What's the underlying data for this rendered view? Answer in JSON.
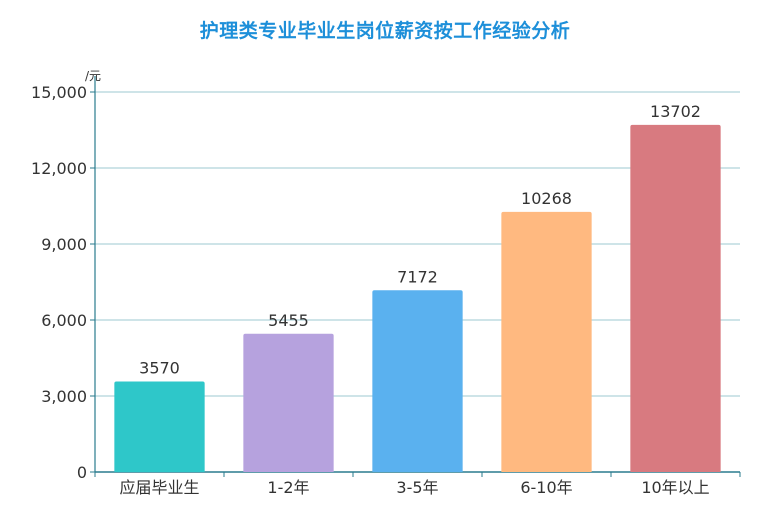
{
  "chart_data": {
    "type": "bar",
    "title": "护理类专业毕业生岗位薪资按工作经验分析",
    "ylabel": "元",
    "xlabel": "",
    "categories": [
      "应届毕业生",
      "1-2年",
      "3-5年",
      "6-10年",
      "10年以上"
    ],
    "values": [
      3570,
      5455,
      7172,
      10268,
      13702
    ],
    "data_labels": [
      "3570",
      "5455",
      "7172",
      "10268",
      "13702"
    ],
    "yticks": [
      0,
      3000,
      6000,
      9000,
      12000,
      15000
    ],
    "ytick_labels": [
      "0",
      "3,000",
      "6,000",
      "9,000",
      "12,000",
      "15,000"
    ],
    "ylim": [
      0,
      15000
    ],
    "grid": true,
    "legend": "none",
    "colors": [
      "#2ec7c9",
      "#b6a2de",
      "#5ab1ef",
      "#ffb980",
      "#d87a80"
    ],
    "axis_color": "#2a7b8e",
    "grid_color": "#9ec8d2"
  }
}
